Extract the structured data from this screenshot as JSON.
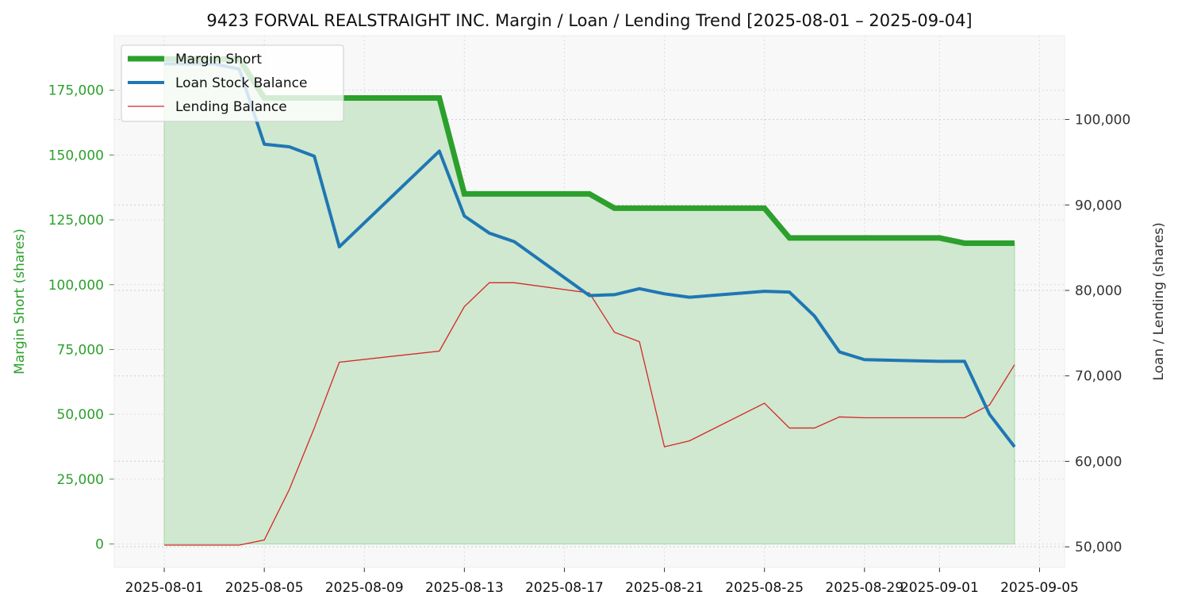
{
  "chart_data": {
    "type": "line",
    "title": "9423 FORVAL REALSTRAIGHT INC. Margin / Loan / Lending Trend [2025-08-01 – 2025-09-04]",
    "xlabel": "",
    "ylabel_left": "Margin Short (shares)",
    "ylabel_right": "Loan / Lending (shares)",
    "x_ticks": [
      "2025-08-01",
      "2025-08-05",
      "2025-08-09",
      "2025-08-13",
      "2025-08-17",
      "2025-08-21",
      "2025-08-25",
      "2025-08-29",
      "2025-09-01",
      "2025-09-05"
    ],
    "y_left_ticks": [
      "0",
      "25,000",
      "50,000",
      "75,000",
      "100,000",
      "125,000",
      "150,000",
      "175,000"
    ],
    "y_right_ticks": [
      "50,000",
      "60,000",
      "70,000",
      "80,000",
      "90,000",
      "100,000"
    ],
    "x_range": [
      "2025-07-30",
      "2025-09-06"
    ],
    "y_left_range": [
      -9000,
      196000
    ],
    "y_right_range": [
      47600,
      109800
    ],
    "grid": true,
    "legend_position": "top-left",
    "colors": {
      "margin_short": "#2ca02c",
      "margin_fill": "#cfe8cf",
      "loan": "#1f77b4",
      "lending": "#d62728",
      "left_axis_text": "#2ca02c",
      "right_axis_text": "#333333",
      "plot_bg": "#f8f8f8"
    },
    "series": [
      {
        "name": "Margin Short",
        "axis": "left",
        "points": [
          [
            "2025-08-01",
            187000
          ],
          [
            "2025-08-04",
            187000
          ],
          [
            "2025-08-05",
            172000
          ],
          [
            "2025-08-12",
            172000
          ],
          [
            "2025-08-13",
            135000
          ],
          [
            "2025-08-18",
            135000
          ],
          [
            "2025-08-19",
            129500
          ],
          [
            "2025-08-25",
            129500
          ],
          [
            "2025-08-26",
            118000
          ],
          [
            "2025-09-01",
            118000
          ],
          [
            "2025-09-02",
            116000
          ],
          [
            "2025-09-04",
            116000
          ]
        ]
      },
      {
        "name": "Loan Stock Balance",
        "axis": "right",
        "points": [
          [
            "2025-08-01",
            106500
          ],
          [
            "2025-08-03",
            106500
          ],
          [
            "2025-08-04",
            105900
          ],
          [
            "2025-08-05",
            97100
          ],
          [
            "2025-08-06",
            96800
          ],
          [
            "2025-08-07",
            95700
          ],
          [
            "2025-08-08",
            85100
          ],
          [
            "2025-08-12",
            96300
          ],
          [
            "2025-08-13",
            88700
          ],
          [
            "2025-08-14",
            86700
          ],
          [
            "2025-08-15",
            85700
          ],
          [
            "2025-08-18",
            79400
          ],
          [
            "2025-08-19",
            79500
          ],
          [
            "2025-08-20",
            80200
          ],
          [
            "2025-08-21",
            79600
          ],
          [
            "2025-08-22",
            79200
          ],
          [
            "2025-08-25",
            79900
          ],
          [
            "2025-08-26",
            79800
          ],
          [
            "2025-08-27",
            77000
          ],
          [
            "2025-08-28",
            72800
          ],
          [
            "2025-08-29",
            71900
          ],
          [
            "2025-09-01",
            71700
          ],
          [
            "2025-09-02",
            71700
          ],
          [
            "2025-09-03",
            65500
          ],
          [
            "2025-09-04",
            61700
          ]
        ]
      },
      {
        "name": "Lending Balance",
        "axis": "right",
        "points": [
          [
            "2025-08-01",
            50200
          ],
          [
            "2025-08-04",
            50200
          ],
          [
            "2025-08-05",
            50800
          ],
          [
            "2025-08-06",
            56700
          ],
          [
            "2025-08-07",
            63900
          ],
          [
            "2025-08-08",
            71600
          ],
          [
            "2025-08-12",
            72900
          ],
          [
            "2025-08-13",
            78100
          ],
          [
            "2025-08-14",
            80900
          ],
          [
            "2025-08-15",
            80900
          ],
          [
            "2025-08-18",
            79700
          ],
          [
            "2025-08-19",
            75100
          ],
          [
            "2025-08-20",
            74000
          ],
          [
            "2025-08-21",
            61700
          ],
          [
            "2025-08-22",
            62400
          ],
          [
            "2025-08-25",
            66800
          ],
          [
            "2025-08-26",
            63900
          ],
          [
            "2025-08-27",
            63900
          ],
          [
            "2025-08-28",
            65200
          ],
          [
            "2025-08-29",
            65100
          ],
          [
            "2025-09-01",
            65100
          ],
          [
            "2025-09-02",
            65100
          ],
          [
            "2025-09-03",
            66600
          ],
          [
            "2025-09-04",
            71300
          ]
        ]
      }
    ]
  }
}
